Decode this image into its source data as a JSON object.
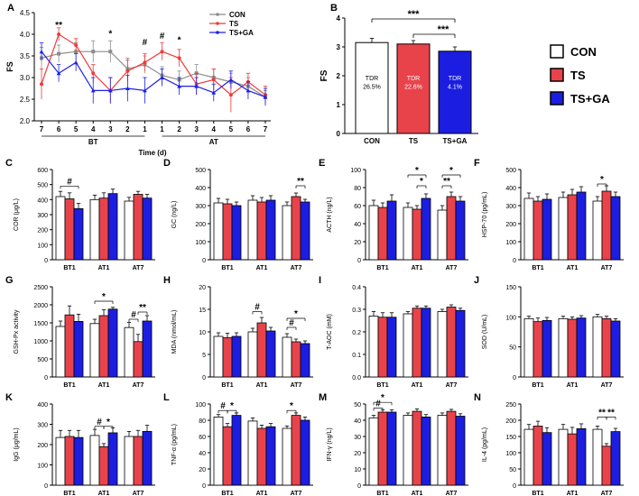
{
  "colors": {
    "con": "#ffffff",
    "ts": "#e8434b",
    "tsga": "#1b1ee0",
    "con_line": "#8c8c8c",
    "ts_line": "#ef3b3b",
    "tsga_line": "#1d1fe6"
  },
  "legend": {
    "con": "CON",
    "ts": "TS",
    "tsga": "TS+GA"
  },
  "chart_data": [
    {
      "panel": "A",
      "type": "line",
      "ylabel": "FS",
      "xlabel": "Time (d)",
      "ylim": [
        2.0,
        4.5
      ],
      "yticks": [
        "2.0",
        "2.5",
        "3.0",
        "3.5",
        "4.0",
        "4.5"
      ],
      "x": [
        "7",
        "6",
        "5",
        "4",
        "3",
        "2",
        "1",
        "1",
        "2",
        "3",
        "4",
        "5",
        "6",
        "7"
      ],
      "group_labels": [
        "BT",
        "AT"
      ],
      "series": [
        {
          "name": "CON",
          "values": [
            3.45,
            3.55,
            3.6,
            3.6,
            3.6,
            3.2,
            3.3,
            3.05,
            2.95,
            3.1,
            3.0,
            2.9,
            2.8,
            2.55
          ],
          "errors": [
            0.25,
            0.2,
            0.2,
            0.25,
            0.25,
            0.25,
            0.2,
            0.2,
            0.2,
            0.2,
            0.2,
            0.2,
            0.2,
            0.15
          ]
        },
        {
          "name": "TS",
          "values": [
            2.85,
            4.0,
            3.75,
            3.1,
            2.7,
            3.15,
            3.35,
            3.6,
            3.45,
            2.85,
            2.95,
            2.6,
            2.9,
            2.6
          ],
          "errors": [
            0.35,
            0.15,
            0.15,
            0.2,
            0.3,
            0.25,
            0.2,
            0.2,
            0.2,
            0.25,
            0.25,
            0.4,
            0.2,
            0.2
          ]
        },
        {
          "name": "TS+GA",
          "values": [
            3.6,
            3.1,
            3.35,
            2.7,
            2.7,
            2.75,
            2.7,
            3.0,
            2.8,
            2.8,
            2.65,
            2.95,
            2.7,
            2.55
          ],
          "errors": [
            0.2,
            0.2,
            0.2,
            0.3,
            0.3,
            0.3,
            0.3,
            0.2,
            0.2,
            0.2,
            0.2,
            0.2,
            0.2,
            0.2
          ]
        }
      ],
      "annotations": [
        "**",
        "*",
        "#",
        "#",
        "*"
      ]
    },
    {
      "panel": "B",
      "type": "bar",
      "ylabel": "FS",
      "ylim": [
        0,
        4
      ],
      "yticks": [
        "0",
        "1",
        "2",
        "3",
        "4"
      ],
      "categories": [
        "CON",
        "TS",
        "TS+GA"
      ],
      "values": [
        3.15,
        3.1,
        2.85
      ],
      "errors": [
        0.15,
        0.12,
        0.15
      ],
      "bar_labels": [
        "TDR\n26.5%",
        "TDR\n22.6%",
        "TDR\n4.1%"
      ],
      "significance": [
        "***",
        "***"
      ]
    },
    {
      "panel": "C",
      "type": "bar",
      "ylabel": "COR (μg/L)",
      "ylim": [
        0,
        600
      ],
      "yticks": [
        "0",
        "100",
        "200",
        "300",
        "400",
        "500",
        "600"
      ],
      "categories": [
        "BT1",
        "AT1",
        "AT7"
      ],
      "series": [
        {
          "name": "CON",
          "values": [
            420,
            400,
            390
          ],
          "errors": [
            35,
            30,
            25
          ]
        },
        {
          "name": "TS",
          "values": [
            405,
            410,
            435
          ],
          "errors": [
            40,
            35,
            20
          ]
        },
        {
          "name": "TS+GA",
          "values": [
            340,
            440,
            410
          ],
          "errors": [
            35,
            30,
            25
          ]
        }
      ],
      "significance": [
        "#"
      ]
    },
    {
      "panel": "D",
      "type": "bar",
      "ylabel": "GC (ng/L)",
      "ylim": [
        0,
        500
      ],
      "yticks": [
        "0",
        "100",
        "200",
        "300",
        "400",
        "500"
      ],
      "categories": [
        "BT1",
        "AT1",
        "AT7"
      ],
      "series": [
        {
          "name": "CON",
          "values": [
            315,
            330,
            300
          ],
          "errors": [
            25,
            25,
            20
          ]
        },
        {
          "name": "TS",
          "values": [
            310,
            320,
            350
          ],
          "errors": [
            25,
            25,
            20
          ]
        },
        {
          "name": "TS+GA",
          "values": [
            300,
            330,
            320
          ],
          "errors": [
            20,
            25,
            15
          ]
        }
      ],
      "significance": [
        "**"
      ]
    },
    {
      "panel": "E",
      "type": "bar",
      "ylabel": "ACTH (ng/L)",
      "ylim": [
        0,
        100
      ],
      "yticks": [
        "0",
        "20",
        "40",
        "60",
        "80",
        "100"
      ],
      "categories": [
        "BT1",
        "AT1",
        "AT7"
      ],
      "series": [
        {
          "name": "CON",
          "values": [
            60,
            58,
            55
          ],
          "errors": [
            6,
            5,
            5
          ]
        },
        {
          "name": "TS",
          "values": [
            58,
            56,
            70
          ],
          "errors": [
            5,
            4,
            5
          ]
        },
        {
          "name": "TS+GA",
          "values": [
            65,
            68,
            65
          ],
          "errors": [
            7,
            5,
            5
          ]
        }
      ],
      "significance": [
        "*",
        "*",
        "**",
        "*"
      ]
    },
    {
      "panel": "F",
      "type": "bar",
      "ylabel": "HSP-70 (pg/mL)",
      "ylim": [
        0,
        500
      ],
      "yticks": [
        "0",
        "100",
        "200",
        "300",
        "400",
        "500"
      ],
      "categories": [
        "BT1",
        "AT1",
        "AT7"
      ],
      "series": [
        {
          "name": "CON",
          "values": [
            340,
            345,
            325
          ],
          "errors": [
            30,
            30,
            25
          ]
        },
        {
          "name": "TS",
          "values": [
            325,
            360,
            380
          ],
          "errors": [
            25,
            30,
            30
          ]
        },
        {
          "name": "TS+GA",
          "values": [
            335,
            375,
            350
          ],
          "errors": [
            30,
            30,
            25
          ]
        }
      ],
      "significance": [
        "*"
      ]
    },
    {
      "panel": "G",
      "type": "bar",
      "ylabel": "GSH-Px activity",
      "ylim": [
        0,
        2500
      ],
      "yticks": [
        "0",
        "500",
        "1000",
        "1500",
        "2000",
        "2500"
      ],
      "categories": [
        "BT1",
        "AT1",
        "AT7"
      ],
      "series": [
        {
          "name": "CON",
          "values": [
            1400,
            1480,
            1370
          ],
          "errors": [
            150,
            120,
            140
          ]
        },
        {
          "name": "TS",
          "values": [
            1720,
            1700,
            980
          ],
          "errors": [
            250,
            160,
            200
          ]
        },
        {
          "name": "TS+GA",
          "values": [
            1540,
            1880,
            1550
          ],
          "errors": [
            200,
            50,
            150
          ]
        }
      ],
      "significance": [
        "*",
        "#",
        "**"
      ]
    },
    {
      "panel": "H",
      "type": "bar",
      "ylabel": "MDA (nmol/mL)",
      "ylim": [
        0,
        20
      ],
      "yticks": [
        "0",
        "5",
        "10",
        "15",
        "20"
      ],
      "categories": [
        "BT1",
        "AT1",
        "AT7"
      ],
      "series": [
        {
          "name": "CON",
          "values": [
            9.0,
            10.0,
            8.8
          ],
          "errors": [
            0.8,
            0.8,
            0.8
          ]
        },
        {
          "name": "TS",
          "values": [
            8.7,
            12.0,
            7.8
          ],
          "errors": [
            1.0,
            1.2,
            0.6
          ]
        },
        {
          "name": "TS+GA",
          "values": [
            9.0,
            10.2,
            7.4
          ],
          "errors": [
            0.8,
            0.8,
            0.6
          ]
        }
      ],
      "significance": [
        "#",
        "#",
        "*"
      ]
    },
    {
      "panel": "I",
      "type": "bar",
      "ylabel": "T-AOC (mM)",
      "ylim": [
        0,
        0.4
      ],
      "yticks": [
        "0.0",
        "0.1",
        "0.2",
        "0.3",
        "0.4"
      ],
      "categories": [
        "BT1",
        "AT1",
        "AT7"
      ],
      "series": [
        {
          "name": "CON",
          "values": [
            0.27,
            0.28,
            0.29
          ],
          "errors": [
            0.02,
            0.01,
            0.01
          ]
        },
        {
          "name": "TS",
          "values": [
            0.265,
            0.305,
            0.31
          ],
          "errors": [
            0.02,
            0.01,
            0.01
          ]
        },
        {
          "name": "TS+GA",
          "values": [
            0.265,
            0.305,
            0.295
          ],
          "errors": [
            0.02,
            0.01,
            0.01
          ]
        }
      ],
      "significance": []
    },
    {
      "panel": "J",
      "type": "bar",
      "ylabel": "SOD (U/mL)",
      "ylim": [
        0,
        150
      ],
      "yticks": [
        "0",
        "50",
        "100",
        "150"
      ],
      "categories": [
        "BT1",
        "AT1",
        "AT7"
      ],
      "series": [
        {
          "name": "CON",
          "values": [
            97,
            97,
            100
          ],
          "errors": [
            4,
            4,
            4
          ]
        },
        {
          "name": "TS",
          "values": [
            92,
            96,
            97
          ],
          "errors": [
            6,
            4,
            4
          ]
        },
        {
          "name": "TS+GA",
          "values": [
            94,
            98,
            93
          ],
          "errors": [
            5,
            4,
            4
          ]
        }
      ],
      "significance": []
    },
    {
      "panel": "K",
      "type": "bar",
      "ylabel": "IgG (μg/mL)",
      "ylim": [
        0,
        400
      ],
      "yticks": [
        "0",
        "100",
        "200",
        "300",
        "400"
      ],
      "categories": [
        "BT1",
        "AT1",
        "AT7"
      ],
      "series": [
        {
          "name": "CON",
          "values": [
            235,
            245,
            240
          ],
          "errors": [
            35,
            30,
            25
          ]
        },
        {
          "name": "TS",
          "values": [
            240,
            190,
            240
          ],
          "errors": [
            30,
            15,
            30
          ]
        },
        {
          "name": "TS+GA",
          "values": [
            235,
            258,
            265
          ],
          "errors": [
            35,
            25,
            30
          ]
        }
      ],
      "significance": [
        "#",
        "*"
      ]
    },
    {
      "panel": "L",
      "type": "bar",
      "ylabel": "TNF-α (pg/mL)",
      "ylim": [
        0,
        100
      ],
      "yticks": [
        "0",
        "20",
        "40",
        "60",
        "80",
        "100"
      ],
      "categories": [
        "BT1",
        "AT1",
        "AT7"
      ],
      "series": [
        {
          "name": "CON",
          "values": [
            84,
            79,
            70
          ],
          "errors": [
            3,
            4,
            3
          ]
        },
        {
          "name": "TS",
          "values": [
            72,
            70,
            86
          ],
          "errors": [
            4,
            4,
            3
          ]
        },
        {
          "name": "TS+GA",
          "values": [
            86,
            72,
            80
          ],
          "errors": [
            3,
            4,
            4
          ]
        }
      ],
      "significance": [
        "#",
        "*",
        "*"
      ]
    },
    {
      "panel": "M",
      "type": "bar",
      "ylabel": "IFN-γ (ng/L)",
      "ylim": [
        0,
        50
      ],
      "yticks": [
        "0",
        "10",
        "20",
        "30",
        "40",
        "50"
      ],
      "categories": [
        "BT1",
        "AT1",
        "AT7"
      ],
      "series": [
        {
          "name": "CON",
          "values": [
            41.5,
            43,
            43
          ],
          "errors": [
            1.5,
            1.5,
            1.5
          ]
        },
        {
          "name": "TS",
          "values": [
            45,
            45.5,
            45.5
          ],
          "errors": [
            1.5,
            1.5,
            1.2
          ]
        },
        {
          "name": "TS+GA",
          "values": [
            45,
            42,
            42.5
          ],
          "errors": [
            1.5,
            1.5,
            1.5
          ]
        }
      ],
      "significance": [
        "#",
        "*"
      ]
    },
    {
      "panel": "N",
      "type": "bar",
      "ylabel": "IL-4 (pg/mL)",
      "ylim": [
        0,
        250
      ],
      "yticks": [
        "0",
        "50",
        "100",
        "150",
        "200",
        "250"
      ],
      "categories": [
        "BT1",
        "AT1",
        "AT7"
      ],
      "series": [
        {
          "name": "CON",
          "values": [
            172,
            172,
            172
          ],
          "errors": [
            15,
            15,
            10
          ]
        },
        {
          "name": "TS",
          "values": [
            182,
            158,
            120
          ],
          "errors": [
            15,
            20,
            8
          ]
        },
        {
          "name": "TS+GA",
          "values": [
            162,
            174,
            165
          ],
          "errors": [
            15,
            15,
            10
          ]
        }
      ],
      "significance": [
        "**",
        "**"
      ]
    }
  ]
}
